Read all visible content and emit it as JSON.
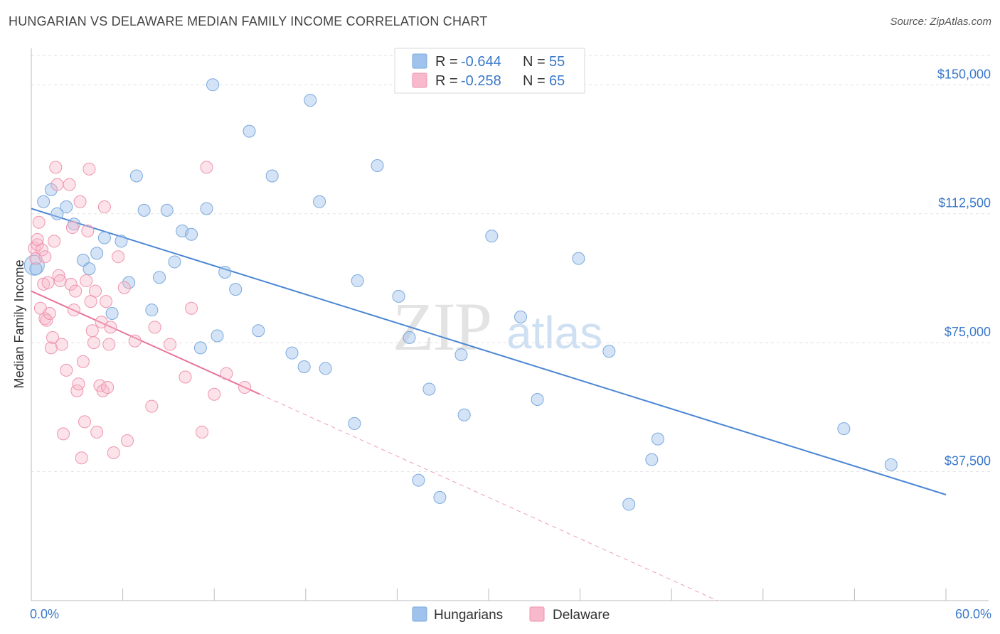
{
  "header": {
    "title": "HUNGARIAN VS DELAWARE MEDIAN FAMILY INCOME CORRELATION CHART",
    "source": "Source: ZipAtlas.com"
  },
  "legend": {
    "r_label": "R =",
    "n_label": "N =",
    "items": [
      {
        "name": "Hungarians",
        "r": "-0.644",
        "n": "55",
        "color": "#9fc3ec",
        "stroke": "#7aa9de"
      },
      {
        "name": "Delaware",
        "r": "-0.258",
        "n": "65",
        "color": "#f7b9cb",
        "stroke": "#ef93ae"
      }
    ]
  },
  "watermark": {
    "zip": "ZIP",
    "atlas": "atlas"
  },
  "chart_data": {
    "type": "scatter",
    "title": "HUNGARIAN VS DELAWARE MEDIAN FAMILY INCOME CORRELATION CHART",
    "ylabel": "Median Family Income",
    "xlabel": "",
    "xlim": [
      0,
      60
    ],
    "ylim": [
      0,
      157500
    ],
    "x_tick_labels": [
      "0.0%",
      "60.0%"
    ],
    "y_ticks": [
      37500,
      75000,
      112500,
      150000
    ],
    "y_tick_labels": [
      "$37,500",
      "$75,000",
      "$112,500",
      "$150,000"
    ],
    "grid": true,
    "legend_position": "top-center",
    "series": [
      {
        "name": "Hungarians",
        "color": "#4a86d4",
        "trend": {
          "x0": 0,
          "y0": 114000,
          "x1": 60,
          "y1": 30800,
          "dashed_to": null
        },
        "points": [
          [
            0.3,
            96500
          ],
          [
            0.8,
            116000
          ],
          [
            1.3,
            119500
          ],
          [
            1.7,
            112500
          ],
          [
            2.3,
            114500
          ],
          [
            2.8,
            109500
          ],
          [
            3.4,
            99000
          ],
          [
            3.8,
            96500
          ],
          [
            4.3,
            101000
          ],
          [
            4.8,
            105500
          ],
          [
            5.3,
            83500
          ],
          [
            5.9,
            104500
          ],
          [
            6.4,
            92500
          ],
          [
            6.9,
            123500
          ],
          [
            7.4,
            113500
          ],
          [
            7.9,
            84500
          ],
          [
            8.4,
            94000
          ],
          [
            8.9,
            113500
          ],
          [
            9.4,
            98500
          ],
          [
            9.9,
            107500
          ],
          [
            10.5,
            106500
          ],
          [
            11.1,
            73500
          ],
          [
            11.5,
            114000
          ],
          [
            11.9,
            150000
          ],
          [
            12.2,
            77000
          ],
          [
            12.7,
            95500
          ],
          [
            13.4,
            90500
          ],
          [
            14.3,
            136500
          ],
          [
            14.9,
            78500
          ],
          [
            15.8,
            123500
          ],
          [
            17.1,
            72000
          ],
          [
            17.9,
            68000
          ],
          [
            18.3,
            145500
          ],
          [
            18.9,
            116000
          ],
          [
            19.3,
            67500
          ],
          [
            21.2,
            51500
          ],
          [
            21.4,
            93000
          ],
          [
            22.7,
            126500
          ],
          [
            24.1,
            88500
          ],
          [
            24.8,
            76500
          ],
          [
            25.4,
            35000
          ],
          [
            26.1,
            61500
          ],
          [
            26.8,
            30000
          ],
          [
            28.2,
            71500
          ],
          [
            28.4,
            54000
          ],
          [
            30.2,
            106000
          ],
          [
            32.1,
            82500
          ],
          [
            33.2,
            58500
          ],
          [
            35.9,
            99500
          ],
          [
            37.9,
            72500
          ],
          [
            39.2,
            28000
          ],
          [
            40.7,
            41000
          ],
          [
            41.1,
            47000
          ],
          [
            53.3,
            50000
          ],
          [
            56.4,
            39500
          ]
        ]
      },
      {
        "name": "Delaware",
        "color": "#e8739a",
        "trend": {
          "x0": 0,
          "y0": 90000,
          "x1": 15,
          "y1": 60000,
          "dashed_to": [
            45,
            0
          ]
        },
        "points": [
          [
            0.2,
            102500
          ],
          [
            0.3,
            99500
          ],
          [
            0.4,
            103500
          ],
          [
            0.4,
            105000
          ],
          [
            0.5,
            110000
          ],
          [
            0.6,
            85000
          ],
          [
            0.7,
            102000
          ],
          [
            0.8,
            92000
          ],
          [
            0.9,
            82000
          ],
          [
            0.9,
            100000
          ],
          [
            1.0,
            81500
          ],
          [
            1.1,
            92500
          ],
          [
            1.2,
            83500
          ],
          [
            1.3,
            73500
          ],
          [
            1.4,
            76500
          ],
          [
            1.5,
            104500
          ],
          [
            1.6,
            126000
          ],
          [
            1.7,
            121000
          ],
          [
            1.8,
            94500
          ],
          [
            1.9,
            93000
          ],
          [
            2.0,
            74500
          ],
          [
            2.1,
            48500
          ],
          [
            2.3,
            67000
          ],
          [
            2.5,
            121000
          ],
          [
            2.6,
            92000
          ],
          [
            2.7,
            108500
          ],
          [
            2.8,
            84500
          ],
          [
            2.9,
            90000
          ],
          [
            3.0,
            61000
          ],
          [
            3.1,
            63000
          ],
          [
            3.2,
            116000
          ],
          [
            3.3,
            41500
          ],
          [
            3.4,
            69500
          ],
          [
            3.5,
            52000
          ],
          [
            3.6,
            93000
          ],
          [
            3.7,
            107500
          ],
          [
            3.8,
            125500
          ],
          [
            3.9,
            87000
          ],
          [
            4.0,
            78500
          ],
          [
            4.1,
            75000
          ],
          [
            4.2,
            90000
          ],
          [
            4.3,
            49000
          ],
          [
            4.5,
            62500
          ],
          [
            4.6,
            81000
          ],
          [
            4.7,
            61000
          ],
          [
            4.8,
            114500
          ],
          [
            4.9,
            87000
          ],
          [
            5.0,
            62000
          ],
          [
            5.1,
            74500
          ],
          [
            5.2,
            79500
          ],
          [
            5.4,
            43000
          ],
          [
            5.7,
            100000
          ],
          [
            6.1,
            91000
          ],
          [
            6.3,
            46500
          ],
          [
            6.8,
            75500
          ],
          [
            7.9,
            56500
          ],
          [
            8.1,
            79500
          ],
          [
            9.1,
            74500
          ],
          [
            10.1,
            65000
          ],
          [
            10.5,
            85000
          ],
          [
            11.2,
            49000
          ],
          [
            11.5,
            126000
          ],
          [
            12.0,
            60000
          ],
          [
            12.8,
            66000
          ],
          [
            14.0,
            62000
          ]
        ]
      }
    ]
  }
}
